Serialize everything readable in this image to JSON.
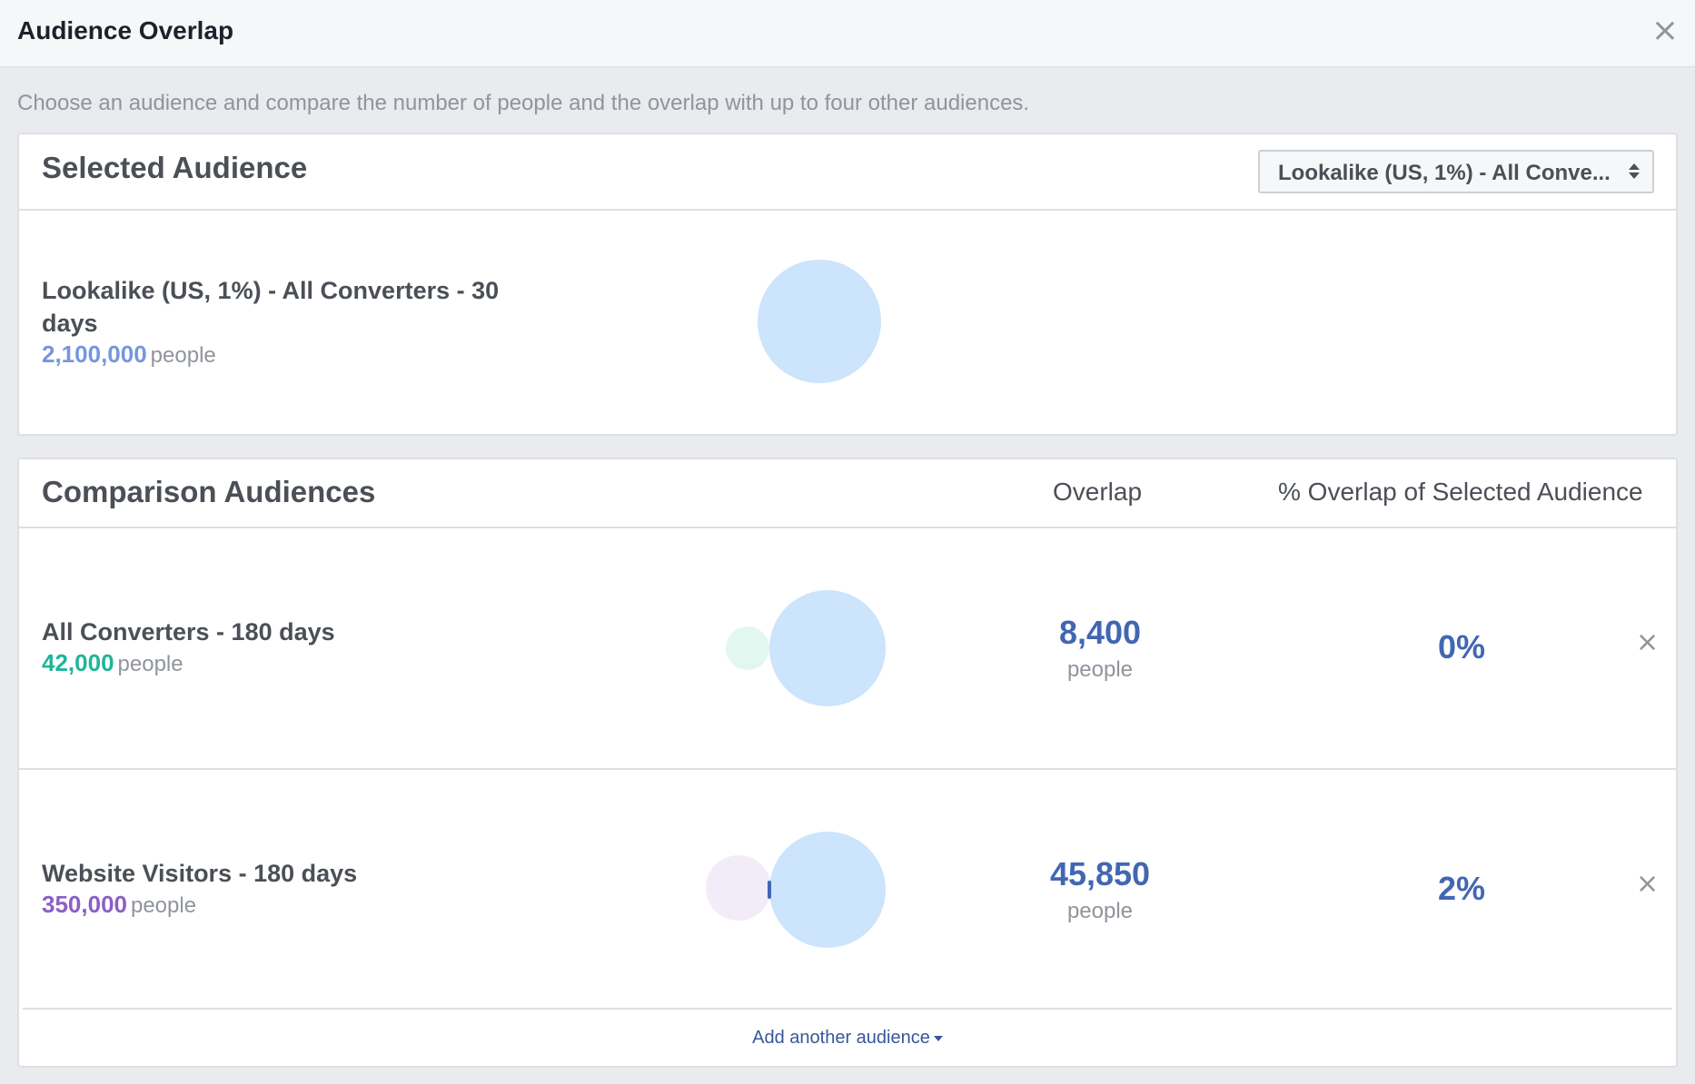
{
  "header": {
    "title": "Audience Overlap"
  },
  "intro": "Choose an audience and compare the number of people and the overlap with up to four other audiences.",
  "selected": {
    "title": "Selected Audience",
    "dropdown_value": "Lookalike (US, 1%) - All Conve...",
    "audience": {
      "name": "Lookalike (US, 1%) - All Converters - 30 days",
      "count": "2,100,000",
      "unit": "people",
      "color": "#7596de"
    }
  },
  "comparison": {
    "title": "Comparison Audiences",
    "col_overlap": "Overlap",
    "col_pct": "% Overlap of Selected Audience",
    "rows": [
      {
        "name": "All Converters - 180 days",
        "count": "42,000",
        "unit": "people",
        "color": "#1fb59a",
        "overlap": "8,400",
        "overlap_unit": "people",
        "pct": "0%"
      },
      {
        "name": "Website Visitors - 180 days",
        "count": "350,000",
        "unit": "people",
        "color": "#8c5fc3",
        "overlap": "45,850",
        "overlap_unit": "people",
        "pct": "2%"
      }
    ],
    "add_label": "Add another audience"
  },
  "colors": {
    "selected_circle": "#cce4fc",
    "row1_circle": "#e3f7f1",
    "row2_circle": "#f2ebf8",
    "accent": "#4267b2"
  }
}
